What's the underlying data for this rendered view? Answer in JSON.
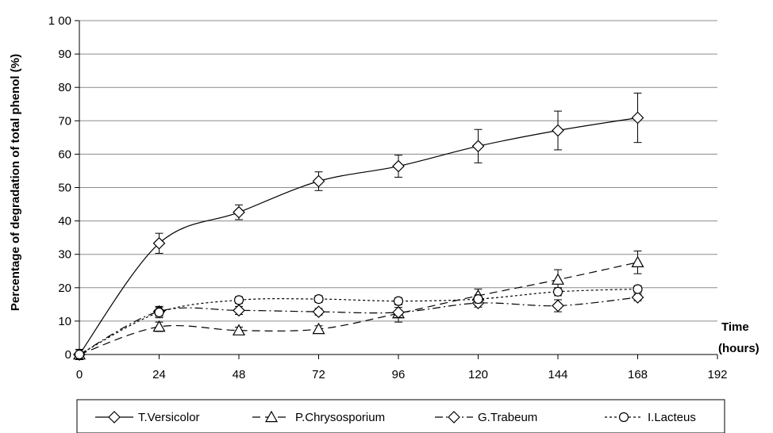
{
  "chart_data": {
    "type": "line",
    "title": "",
    "xlabel_lines": [
      "Time",
      "(hours)"
    ],
    "ylabel": "Percentage  of degradation of total phenol (%)",
    "xlim": [
      0,
      192
    ],
    "ylim": [
      0,
      100
    ],
    "x_ticks": [
      0,
      24,
      48,
      72,
      96,
      120,
      144,
      168,
      192
    ],
    "y_ticks": [
      0,
      10,
      20,
      30,
      40,
      50,
      60,
      70,
      80,
      90,
      100
    ],
    "y_tick_labels": [
      "0",
      "10",
      "20",
      "30",
      "40",
      "50",
      "60",
      "70",
      "80",
      "90",
      "1 00"
    ],
    "grid": "horizontal",
    "legend_position": "bottom",
    "x": [
      0,
      24,
      48,
      72,
      96,
      120,
      144,
      168
    ],
    "series": [
      {
        "name": "T.Versicolor",
        "marker": "diamond",
        "dash": "solid",
        "values": [
          0,
          33.3,
          42.6,
          51.9,
          56.4,
          62.4,
          67.1,
          70.9
        ],
        "errors": [
          1.5,
          3.0,
          2.2,
          2.8,
          3.3,
          5.0,
          5.8,
          7.4
        ]
      },
      {
        "name": "P.Chrysosporium",
        "marker": "triangle",
        "dash": "long-dash",
        "values": [
          0,
          8.3,
          7.2,
          7.6,
          12.3,
          17.6,
          22.4,
          27.6
        ],
        "errors": [
          1.5,
          1.4,
          1.0,
          1.0,
          2.6,
          2.0,
          3.0,
          3.4
        ]
      },
      {
        "name": "G.Trabeum",
        "marker": "diamond",
        "dash": "dash-dot",
        "values": [
          0,
          12.9,
          13.2,
          12.8,
          12.6,
          15.4,
          14.6,
          17.1
        ],
        "errors": [
          1.5,
          1.5,
          1.2,
          1.0,
          1.5,
          1.2,
          1.8,
          1.0
        ]
      },
      {
        "name": "I.Lacteus",
        "marker": "circle",
        "dash": "dotted",
        "values": [
          0,
          12.6,
          16.3,
          16.6,
          16.0,
          16.6,
          18.8,
          19.6
        ],
        "errors": [
          1.5,
          1.6,
          1.0,
          1.0,
          1.0,
          1.2,
          1.2,
          1.0
        ]
      }
    ]
  }
}
